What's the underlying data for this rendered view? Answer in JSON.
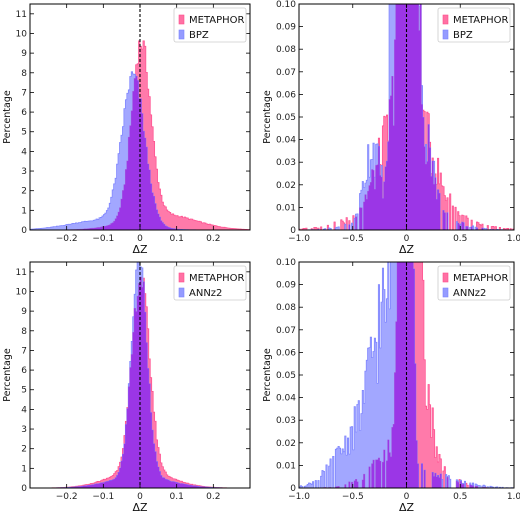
{
  "colors": {
    "metaphor": "#ff4d8d",
    "bpz": "#7b82ff",
    "annz2": "#7b82ff",
    "overlap": "#9b33e6",
    "axis": "#000000"
  },
  "chart_data": [
    {
      "type": "area",
      "panel": "top-left",
      "xlabel": "ΔZ",
      "ylabel": "Percentage",
      "xlim": [
        -0.3,
        0.3
      ],
      "ylim": [
        0,
        11.5
      ],
      "xticks": [
        -0.2,
        -0.1,
        0.0,
        0.1,
        0.2
      ],
      "xticklabels": [
        "−0.2",
        "−0.1",
        "0",
        "0.1",
        "0.2"
      ],
      "yticks": [
        0,
        1,
        2,
        3,
        4,
        5,
        6,
        7,
        8,
        9,
        10,
        11
      ],
      "yticklabels": [
        "0",
        "1",
        "2",
        "3",
        "4",
        "5",
        "6",
        "7",
        "8",
        "9",
        "10",
        "11"
      ],
      "vline": 0,
      "legend_position": "top-right",
      "series": [
        {
          "name": "METAPHOR",
          "kind": "gauss",
          "mu": 0.003,
          "sigma": 0.026,
          "amp": 8.9,
          "tails": [
            [
              0.06,
              0.09,
              0.8
            ]
          ]
        },
        {
          "name": "BPZ",
          "kind": "gauss",
          "mu": -0.018,
          "sigma": 0.031,
          "amp": 7.5,
          "tails": [
            [
              -0.1,
              0.09,
              0.5
            ]
          ]
        }
      ]
    },
    {
      "type": "area",
      "panel": "top-right",
      "xlabel": "ΔZ",
      "ylabel": "Percentage",
      "xlim": [
        -1.0,
        1.0
      ],
      "ylim": [
        0,
        0.1
      ],
      "xticks": [
        -1.0,
        -0.5,
        0.0,
        0.5,
        1.0
      ],
      "xticklabels": [
        "−1.0",
        "−0.5",
        "0",
        "0.5",
        "1.0"
      ],
      "yticks": [
        0,
        0.01,
        0.02,
        0.03,
        0.04,
        0.05,
        0.06,
        0.07,
        0.08,
        0.09,
        0.1
      ],
      "yticklabels": [
        "0",
        "0.01",
        "0.02",
        "0.03",
        "0.04",
        "0.05",
        "0.06",
        "0.07",
        "0.08",
        "0.09",
        "0.10"
      ],
      "vline": 0,
      "legend_position": "top-right",
      "series": [
        {
          "name": "METAPHOR",
          "kind": "gauss",
          "mu": 0.01,
          "sigma": 0.04,
          "amp": 3.0,
          "tails": [
            [
              0.0,
              0.2,
              0.05
            ],
            [
              0.0,
              0.4,
              0.01
            ]
          ]
        },
        {
          "name": "BPZ",
          "kind": "gauss",
          "mu": -0.02,
          "sigma": 0.05,
          "amp": 2.8,
          "tails": [
            [
              -0.32,
              0.07,
              0.03
            ],
            [
              0.15,
              0.08,
              0.04
            ],
            [
              0.0,
              0.3,
              0.012
            ]
          ]
        }
      ]
    },
    {
      "type": "area",
      "panel": "bottom-left",
      "xlabel": "ΔZ",
      "ylabel": "Percentage",
      "xlim": [
        -0.3,
        0.3
      ],
      "ylim": [
        0,
        11.5
      ],
      "xticks": [
        -0.2,
        -0.1,
        0.0,
        0.1,
        0.2
      ],
      "xticklabels": [
        "−0.2",
        "−0.1",
        "0",
        "0.1",
        "0.2"
      ],
      "yticks": [
        0,
        1,
        2,
        3,
        4,
        5,
        6,
        7,
        8,
        9,
        10,
        11
      ],
      "yticklabels": [
        "0",
        "1",
        "2",
        "3",
        "4",
        "5",
        "6",
        "7",
        "8",
        "9",
        "10",
        "11"
      ],
      "vline": 0,
      "legend_position": "top-right",
      "series": [
        {
          "name": "METAPHOR",
          "kind": "gauss",
          "mu": 0.002,
          "sigma": 0.024,
          "amp": 9.8,
          "tails": [
            [
              0.0,
              0.08,
              0.9
            ]
          ]
        },
        {
          "name": "ANNz2",
          "kind": "gauss",
          "mu": -0.002,
          "sigma": 0.021,
          "amp": 11.2,
          "tails": [
            [
              0.0,
              0.08,
              0.6
            ]
          ]
        }
      ]
    },
    {
      "type": "area",
      "panel": "bottom-right",
      "xlabel": "ΔZ",
      "ylabel": "Percentage",
      "xlim": [
        -1.0,
        1.0
      ],
      "ylim": [
        0,
        0.1
      ],
      "xticks": [
        -1.0,
        -0.5,
        0.0,
        0.5,
        1.0
      ],
      "xticklabels": [
        "−1.0",
        "−0.5",
        "0",
        "0.5",
        "1.0"
      ],
      "yticks": [
        0,
        0.01,
        0.02,
        0.03,
        0.04,
        0.05,
        0.06,
        0.07,
        0.08,
        0.09,
        0.1
      ],
      "yticklabels": [
        "0",
        "0.01",
        "0.02",
        "0.03",
        "0.04",
        "0.05",
        "0.06",
        "0.07",
        "0.08",
        "0.09",
        "0.10"
      ],
      "vline": 0,
      "legend_position": "top-right",
      "series": [
        {
          "name": "METAPHOR",
          "kind": "gauss",
          "mu": 0.02,
          "sigma": 0.04,
          "amp": 3.0,
          "tails": [
            [
              0.12,
              0.08,
              0.05
            ],
            [
              0.0,
              0.25,
              0.02
            ]
          ]
        },
        {
          "name": "ANNz2",
          "kind": "gauss",
          "mu": -0.04,
          "sigma": 0.04,
          "amp": 3.0,
          "tails": [
            [
              -0.2,
              0.12,
              0.06
            ],
            [
              -0.45,
              0.2,
              0.02
            ],
            [
              0.0,
              0.35,
              0.008
            ]
          ]
        }
      ]
    }
  ]
}
